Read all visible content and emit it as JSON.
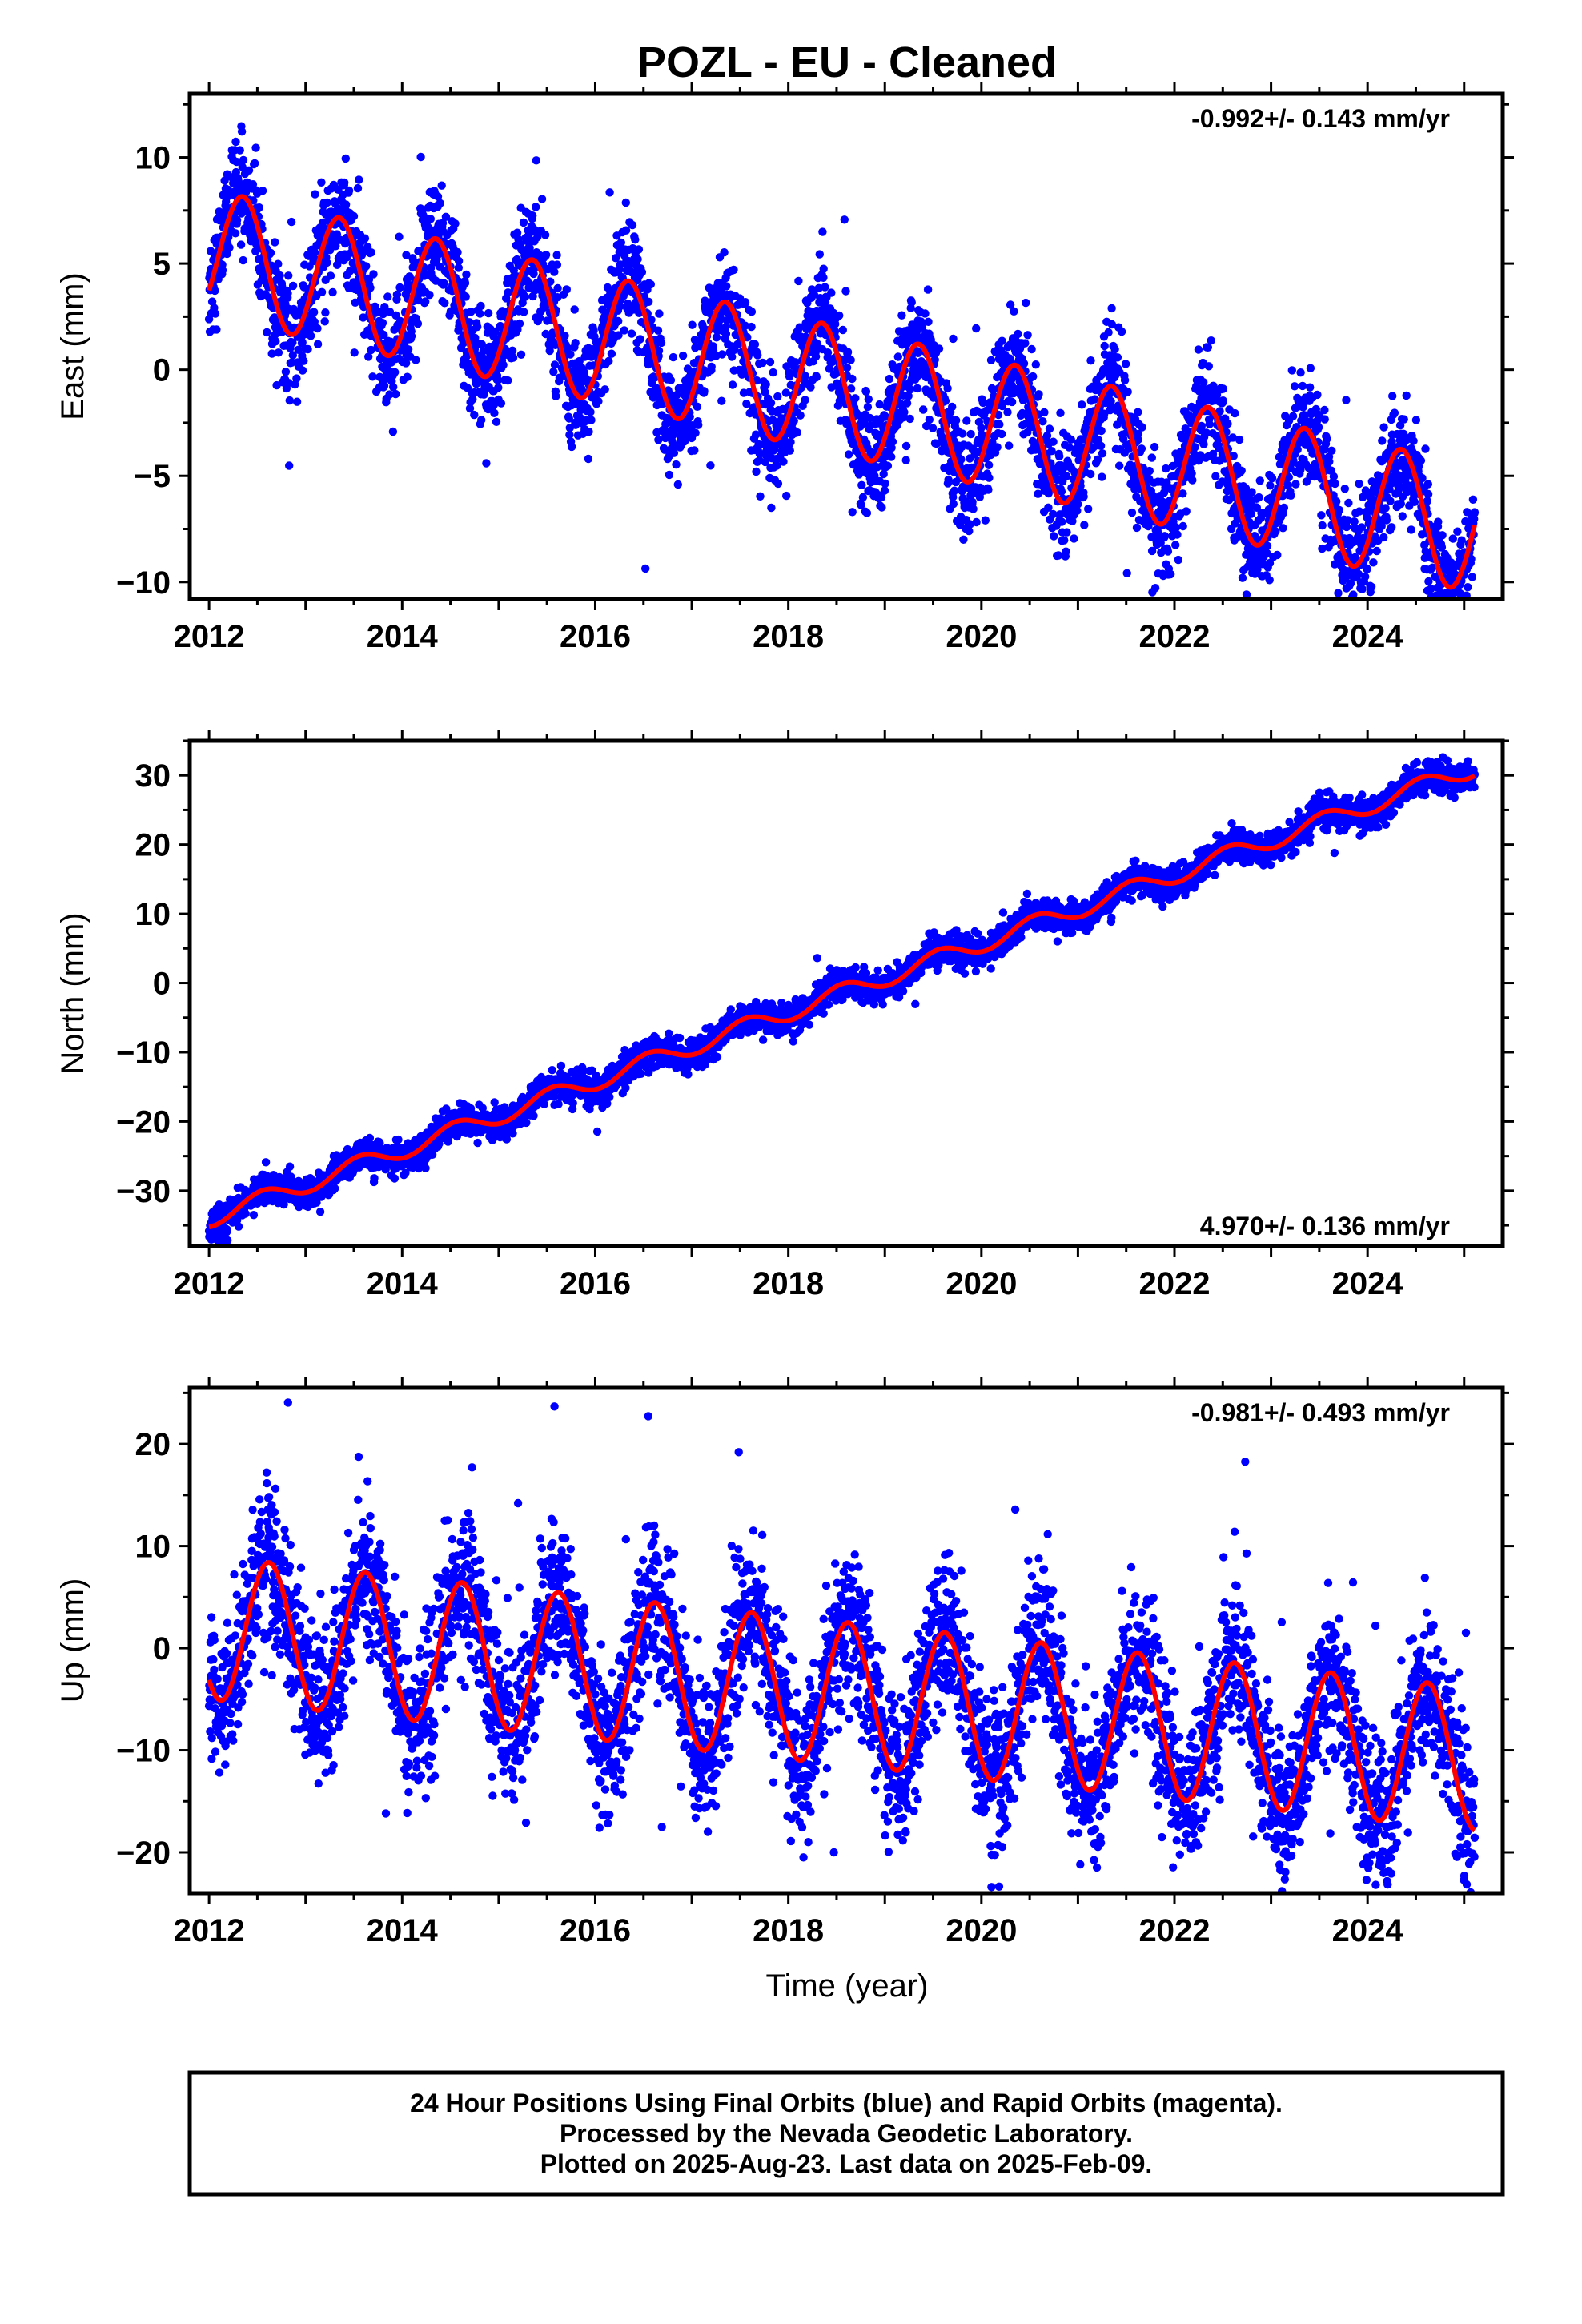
{
  "title": "POZL  - EU - Cleaned",
  "x_axis": {
    "label": "Time (year)",
    "ticks": [
      "2012",
      "2014",
      "2016",
      "2018",
      "2020",
      "2022",
      "2024"
    ]
  },
  "footer": {
    "lines": [
      "24 Hour Positions Using Final Orbits (blue) and Rapid Orbits (magenta).",
      "Processed by the Nevada Geodetic Laboratory.",
      "Plotted on 2025-Aug-23. Last data on 2025-Feb-09."
    ]
  },
  "colors": {
    "points": "#0000ff",
    "model": "#ff0000",
    "axes": "#000000"
  },
  "chart_data": [
    {
      "type": "scatter",
      "component": "East",
      "ylabel": "East (mm)",
      "rate_text": "-0.992+/- 0.143 mm/yr",
      "rate_position": "top-right",
      "xlim": [
        2011.8,
        2025.4
      ],
      "ylim": [
        -10.8,
        13.0
      ],
      "yticks": [
        -10,
        -5,
        0,
        5,
        10
      ],
      "data_start": 2012.0,
      "data_end": 2025.11,
      "series": [
        {
          "name": "Final Orbits",
          "style": "points",
          "trend_intercept": 5.5,
          "trend_rate": -0.992,
          "seasonal_amplitude": 3.0,
          "seasonal_peak": 0.35,
          "noise_sd": 1.3,
          "outlier_fraction": 0.01
        },
        {
          "name": "Model",
          "style": "line",
          "trend_intercept": 5.5,
          "trend_rate": -0.992,
          "seasonal_amplitude": 3.0,
          "seasonal_peak": 0.35
        }
      ]
    },
    {
      "type": "scatter",
      "component": "North",
      "ylabel": "North (mm)",
      "rate_text": "4.970+/- 0.136 mm/yr",
      "rate_position": "bottom-right",
      "xlim": [
        2011.8,
        2025.4
      ],
      "ylim": [
        -38.0,
        35.0
      ],
      "yticks": [
        -30,
        -20,
        -10,
        0,
        10,
        20,
        30
      ],
      "data_start": 2012.0,
      "data_end": 2025.11,
      "series": [
        {
          "name": "Final Orbits",
          "style": "points",
          "trend_intercept": -34.0,
          "trend_rate": 4.97,
          "seasonal_amplitude": 1.3,
          "seasonal_peak": 0.55,
          "noise_sd": 1.1,
          "outlier_fraction": 0.005
        },
        {
          "name": "Model",
          "style": "line",
          "trend_intercept": -34.0,
          "trend_rate": 4.97,
          "seasonal_amplitude": 1.3,
          "seasonal_peak": 0.55
        }
      ]
    },
    {
      "type": "scatter",
      "component": "Up",
      "ylabel": "Up (mm)",
      "rate_text": "-0.981+/- 0.493 mm/yr",
      "rate_position": "top-right",
      "xlim": [
        2011.8,
        2025.4
      ],
      "ylim": [
        -24.0,
        25.5
      ],
      "yticks": [
        -20,
        -10,
        0,
        10,
        20
      ],
      "data_start": 2012.0,
      "data_end": 2025.11,
      "series": [
        {
          "name": "Final Orbits",
          "style": "points",
          "trend_intercept": 2.0,
          "trend_rate": -0.981,
          "seasonal_amplitude": 7.0,
          "seasonal_peak": 0.62,
          "noise_sd": 3.6,
          "outlier_fraction": 0.02
        },
        {
          "name": "Model",
          "style": "line",
          "trend_intercept": 2.0,
          "trend_rate": -0.981,
          "seasonal_amplitude": 7.0,
          "seasonal_peak": 0.62
        }
      ]
    }
  ]
}
